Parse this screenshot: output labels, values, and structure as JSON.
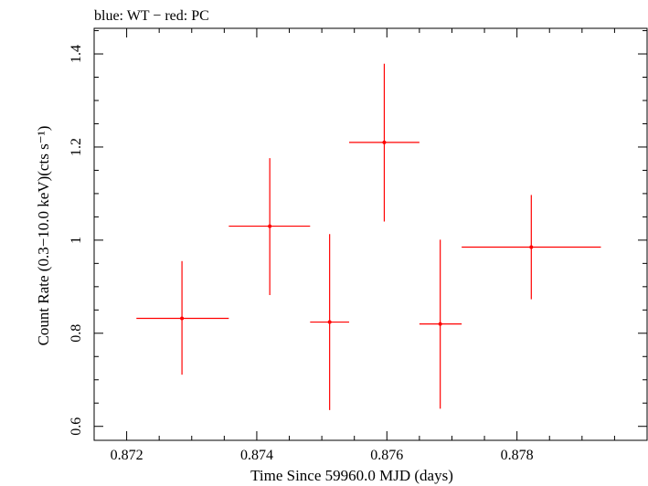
{
  "chart_data": {
    "type": "scatter",
    "title": "blue: WT − red: PC",
    "xlabel": "Time Since 59960.0 MJD (days)",
    "ylabel": "Count Rate (0.3−10.0 keV)(cts s⁻¹)",
    "xlim": [
      0.8715,
      0.88
    ],
    "ylim": [
      0.57,
      1.455
    ],
    "x_ticks": [
      "0.872",
      "0.874",
      "0.876",
      "0.878"
    ],
    "x_tick_values": [
      0.872,
      0.874,
      0.876,
      0.878
    ],
    "y_ticks": [
      "0.6",
      "0.8",
      "1",
      "1.2",
      "1.4"
    ],
    "y_tick_values": [
      0.6,
      0.8,
      1.0,
      1.2,
      1.4
    ],
    "grid": false,
    "series": [
      {
        "color": "#ff0000",
        "points": [
          {
            "x": 0.87285,
            "xerr_lo": 0.87215,
            "xerr_hi": 0.87357,
            "y": 0.832,
            "yerr_lo": 0.711,
            "yerr_hi": 0.955
          },
          {
            "x": 0.8742,
            "xerr_lo": 0.87357,
            "xerr_hi": 0.87482,
            "y": 1.03,
            "yerr_lo": 0.882,
            "yerr_hi": 1.176
          },
          {
            "x": 0.87512,
            "xerr_lo": 0.87482,
            "xerr_hi": 0.87542,
            "y": 0.824,
            "yerr_lo": 0.635,
            "yerr_hi": 1.013
          },
          {
            "x": 0.87596,
            "xerr_lo": 0.87542,
            "xerr_hi": 0.8765,
            "y": 1.21,
            "yerr_lo": 1.04,
            "yerr_hi": 1.379
          },
          {
            "x": 0.87682,
            "xerr_lo": 0.8765,
            "xerr_hi": 0.87715,
            "y": 0.82,
            "yerr_lo": 0.638,
            "yerr_hi": 1.001
          },
          {
            "x": 0.87822,
            "xerr_lo": 0.87715,
            "xerr_hi": 0.87929,
            "y": 0.985,
            "yerr_lo": 0.873,
            "yerr_hi": 1.097
          }
        ]
      }
    ]
  }
}
